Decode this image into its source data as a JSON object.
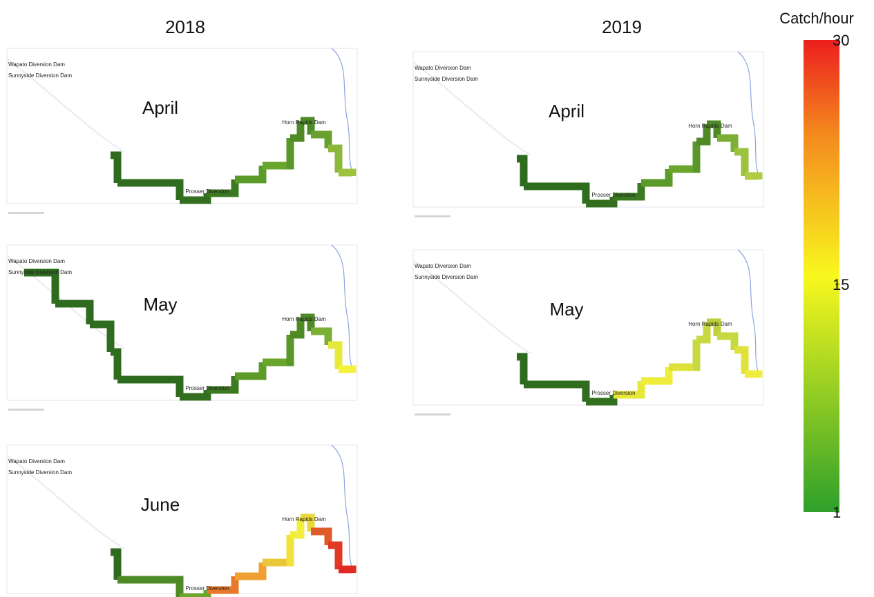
{
  "columns": [
    {
      "year": "2018",
      "panels": [
        {
          "month": "April",
          "labels": [
            "Wapato Diversion Dam",
            "Sunnyside Diversion Dam",
            "Prosser Diversion",
            "Horn Rapids Dam"
          ],
          "colors": [
            "#2e6b1e",
            "#2f6c1e",
            "#336f1f",
            "#3c7a22",
            "#5c9a2a",
            "#6aa52c",
            "#5a962a",
            "#4e8a26",
            "#4e8a26",
            "#6aa030",
            "#8cb83a",
            "#9cc23e"
          ]
        },
        {
          "month": "May",
          "labels": [
            "Wapato Diversion Dam",
            "Sunnyside Diversion Dam",
            "Prosser Diversion",
            "Horn Rapids Dam"
          ],
          "colors": [
            "#2e6b1e",
            "#2e6b1e",
            "#2f6c1e",
            "#2f6c1e",
            "#2e6b1e",
            "#336f1f",
            "#3c7a22",
            "#5c9a2a",
            "#6aa52c",
            "#5a962a",
            "#4e8a26",
            "#4e8a26",
            "#7aae34",
            "#e6e83a",
            "#f4f23c"
          ]
        },
        {
          "month": "June",
          "labels": [
            "Wapato Diversion Dam",
            "Sunnyside Diversion Dam",
            "Prosser Diversion",
            "Horn Rapids Dam"
          ],
          "colors": [
            "#2e6b1e",
            "#4e8a26",
            "#6aa52c",
            "#e8782a",
            "#f0a030",
            "#e8c83a",
            "#f0e23c",
            "#f2ee3c",
            "#e8d83a",
            "#e05a2a",
            "#e03a26",
            "#e02a22"
          ]
        }
      ]
    },
    {
      "year": "2019",
      "panels": [
        {
          "month": "April",
          "labels": [
            "Wapato Diversion Dam",
            "Sunnyside Diversion Dam",
            "Prosser Diversion",
            "Horn Rapids Dam"
          ],
          "colors": [
            "#2e6b1e",
            "#2f6c1e",
            "#336f1f",
            "#3c7a22",
            "#5c9a2a",
            "#6aa52c",
            "#5a962a",
            "#4e8a26",
            "#4e8a26",
            "#7aae34",
            "#9cc23e",
            "#b0cc44"
          ]
        },
        {
          "month": "May",
          "labels": [
            "Wapato Diversion Dam",
            "Sunnyside Diversion Dam",
            "Prosser Diversion",
            "Horn Rapids Dam"
          ],
          "colors": [
            "#2e6b1e",
            "#2f6c1e",
            "#336f1f",
            "#e8e83a",
            "#f0ec3c",
            "#dce23a",
            "#c8d840",
            "#c8d840",
            "#bcd03e",
            "#c8d840",
            "#e0e23c",
            "#eeec3c"
          ]
        }
      ]
    }
  ],
  "colorbar": {
    "title": "Catch/hour",
    "ticks": [
      30,
      15,
      1
    ]
  }
}
